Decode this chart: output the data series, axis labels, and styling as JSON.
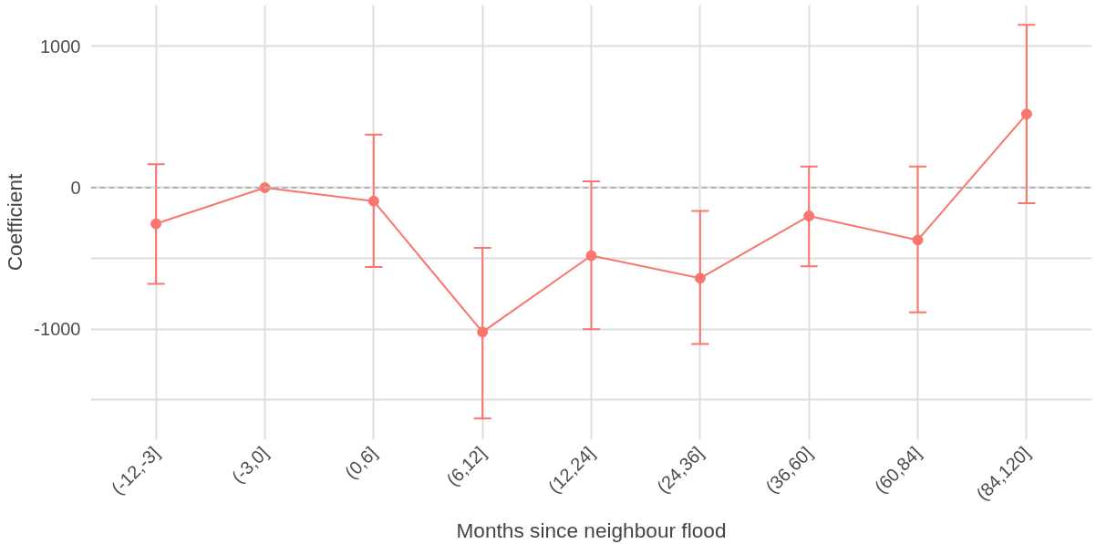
{
  "chart_data": {
    "type": "line",
    "xlabel": "Months since neighbour flood",
    "ylabel": "Coefficient",
    "categories": [
      "(-12,-3]",
      "(-3,0]",
      "(0,6]",
      "(6,12]",
      "(12,24]",
      "(24,36]",
      "(36,60]",
      "(60,84]",
      "(84,120]"
    ],
    "series": [
      {
        "color": "#f8766d",
        "values": [
          -255,
          0,
          -95,
          -1020,
          -480,
          -640,
          -200,
          -370,
          520
        ],
        "errors": [
          [
            -680,
            165
          ],
          null,
          [
            -560,
            375
          ],
          [
            -1630,
            -425
          ],
          [
            -1000,
            45
          ],
          [
            -1105,
            -165
          ],
          [
            -555,
            150
          ],
          [
            -880,
            150
          ],
          [
            -110,
            1150
          ]
        ]
      }
    ],
    "ylim": [
      -1780,
      1290
    ],
    "yticks": [
      {
        "value": -1500,
        "label": null
      },
      -1000,
      {
        "value": -500,
        "label": null
      },
      0,
      1000
    ],
    "grid": true,
    "marker": "circle",
    "line_style": "solid",
    "ref_lines": [
      {
        "axis": "y",
        "value": 0,
        "color": "#b3b3b3",
        "line_style": "dashed"
      }
    ]
  }
}
